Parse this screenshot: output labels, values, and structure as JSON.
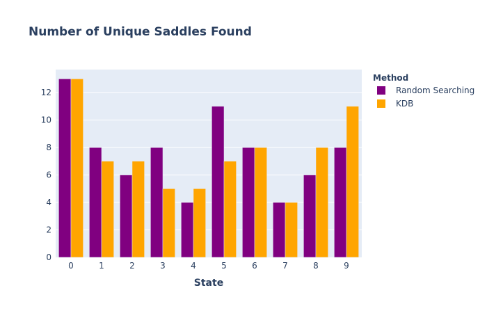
{
  "chart_data": {
    "type": "bar",
    "title": "Number of Unique Saddles Found",
    "xlabel": "State",
    "ylabel": "",
    "categories": [
      "0",
      "1",
      "2",
      "3",
      "4",
      "5",
      "6",
      "7",
      "8",
      "9"
    ],
    "ylim": [
      0,
      13.68
    ],
    "yticks": [
      "0",
      "2",
      "4",
      "6",
      "8",
      "10",
      "12"
    ],
    "grid": true,
    "legend": {
      "title": "Method",
      "placement": "right"
    },
    "series": [
      {
        "name": "Random Searching",
        "color": "#800080",
        "values": [
          13,
          8,
          6,
          8,
          4,
          11,
          8,
          4,
          6,
          8
        ]
      },
      {
        "name": "KDB",
        "color": "#FFA500",
        "values": [
          13,
          7,
          7,
          5,
          5,
          7,
          8,
          4,
          8,
          11
        ]
      }
    ],
    "plot_bgcolor": "#E5ECF6",
    "grid_color": "#ffffff"
  }
}
